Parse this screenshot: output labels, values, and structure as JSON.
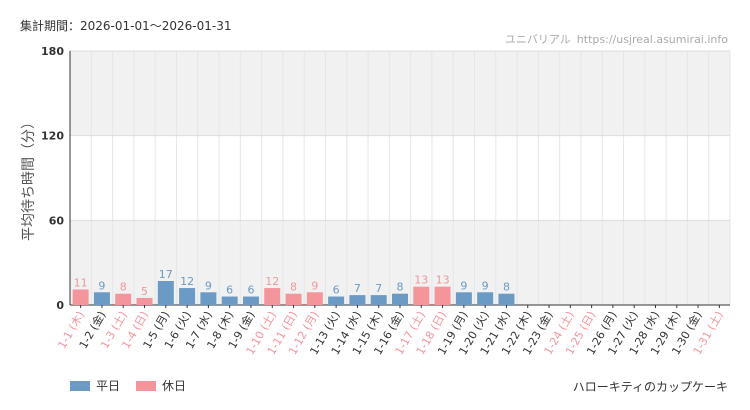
{
  "header": {
    "period": "集計期間：2026-01-01〜2026-01-31",
    "site_name": "ユニバリアル",
    "site_url": "https://usjreal.asumirai.info"
  },
  "legend": {
    "weekday_label": "平日",
    "holiday_label": "休日"
  },
  "attraction_name": "ハローキティのカップケーキ",
  "colors": {
    "weekday": "#6b9ac4",
    "holiday": "#f4959b",
    "band": "#f1f1f1",
    "grid": "#e6e6e6"
  },
  "chart_data": {
    "type": "bar",
    "ylabel": "平均待ち時間（分）",
    "ylim": [
      0,
      180
    ],
    "yticks": [
      0,
      60,
      120,
      180
    ],
    "bands": [
      [
        120,
        180
      ],
      [
        0,
        60
      ]
    ],
    "categories": [
      "1-1 (木)",
      "1-2 (金)",
      "1-3 (土)",
      "1-4 (日)",
      "1-5 (月)",
      "1-6 (火)",
      "1-7 (水)",
      "1-8 (木)",
      "1-9 (金)",
      "1-10 (土)",
      "1-11 (日)",
      "1-12 (月)",
      "1-13 (火)",
      "1-14 (水)",
      "1-15 (木)",
      "1-16 (金)",
      "1-17 (土)",
      "1-18 (日)",
      "1-19 (月)",
      "1-20 (火)",
      "1-21 (水)",
      "1-22 (木)",
      "1-23 (金)",
      "1-24 (土)",
      "1-25 (日)",
      "1-26 (月)",
      "1-27 (火)",
      "1-28 (水)",
      "1-29 (木)",
      "1-30 (金)",
      "1-31 (土)"
    ],
    "day_type": [
      "holiday",
      "weekday",
      "holiday",
      "holiday",
      "weekday",
      "weekday",
      "weekday",
      "weekday",
      "weekday",
      "holiday",
      "holiday",
      "holiday",
      "weekday",
      "weekday",
      "weekday",
      "weekday",
      "holiday",
      "holiday",
      "weekday",
      "weekday",
      "weekday",
      "weekday",
      "weekday",
      "holiday",
      "holiday",
      "weekday",
      "weekday",
      "weekday",
      "weekday",
      "weekday",
      "holiday"
    ],
    "values": [
      11,
      9,
      8,
      5,
      17,
      12,
      9,
      6,
      6,
      12,
      8,
      9,
      6,
      7,
      7,
      8,
      13,
      13,
      9,
      9,
      8,
      null,
      null,
      null,
      null,
      null,
      null,
      null,
      null,
      null,
      null
    ]
  }
}
